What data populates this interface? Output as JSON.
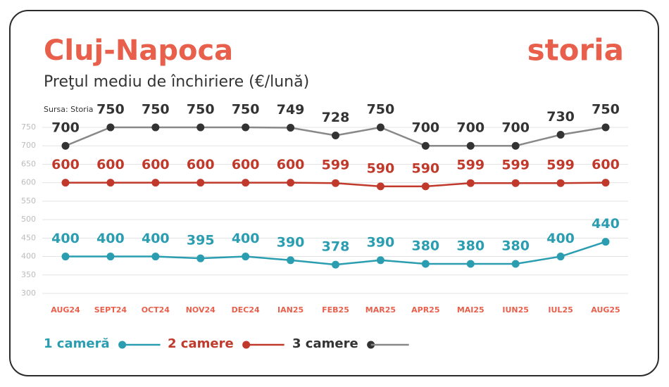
{
  "chart_data": {
    "type": "line",
    "title": "Cluj-Napoca",
    "subtitle": "Preţul mediu de închiriere (€/lună)",
    "source": "Sursa: Storia",
    "logo": "storia",
    "categories": [
      "AUG24",
      "SEPT24",
      "OCT24",
      "NOV24",
      "DEC24",
      "IAN25",
      "FEB25",
      "MAR25",
      "APR25",
      "MAI25",
      "IUN25",
      "IUL25",
      "AUG25"
    ],
    "series": [
      {
        "name": "1 cameră",
        "color": "#2a9db0",
        "values": [
          400,
          400,
          400,
          395,
          400,
          390,
          378,
          390,
          380,
          380,
          380,
          400,
          440
        ]
      },
      {
        "name": "2 camere",
        "color": "#c0392b",
        "values": [
          600,
          600,
          600,
          600,
          600,
          600,
          599,
          590,
          590,
          599,
          599,
          599,
          600
        ]
      },
      {
        "name": "3 camere",
        "color": "#333333",
        "values": [
          700,
          750,
          750,
          750,
          750,
          749,
          728,
          750,
          700,
          700,
          700,
          730,
          750
        ]
      }
    ],
    "ylim": [
      300,
      750
    ],
    "yticks": [
      300,
      350,
      400,
      450,
      500,
      550,
      600,
      650,
      700,
      750
    ],
    "grid": true
  }
}
